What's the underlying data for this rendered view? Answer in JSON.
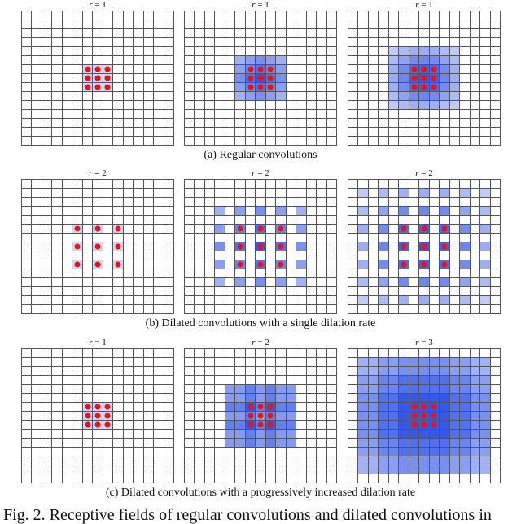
{
  "figure": {
    "caption": "Fig. 2.  Receptive fields of regular convolutions and dilated convolutions in",
    "grid_size": 15,
    "colors": {
      "grid_line": "#555555",
      "dot": "#f01010",
      "receptive_field_base": "#1e46e6"
    },
    "rows": [
      {
        "caption": "(a) Regular convolutions",
        "panels": [
          {
            "label": "r = 1",
            "kernel": 3,
            "dilations": [
              1
            ],
            "show_layers": 1
          },
          {
            "label": "r = 1",
            "kernel": 3,
            "dilations": [
              1,
              1
            ],
            "show_layers": 2
          },
          {
            "label": "r = 1",
            "kernel": 3,
            "dilations": [
              1,
              1,
              1
            ],
            "show_layers": 3
          }
        ]
      },
      {
        "caption": "(b) Dilated convolutions with a single dilation rate",
        "panels": [
          {
            "label": "r = 2",
            "kernel": 3,
            "dilations": [
              2
            ],
            "show_layers": 1
          },
          {
            "label": "r = 2",
            "kernel": 3,
            "dilations": [
              2,
              2
            ],
            "show_layers": 2
          },
          {
            "label": "r = 2",
            "kernel": 3,
            "dilations": [
              2,
              2,
              2
            ],
            "show_layers": 3
          }
        ]
      },
      {
        "caption": "(c) Dilated convolutions with a progressively increased dilation rate",
        "panels": [
          {
            "label": "r = 1",
            "kernel": 3,
            "dilations": [
              1
            ],
            "show_layers": 1
          },
          {
            "label": "r = 2",
            "kernel": 3,
            "dilations": [
              2,
              1
            ],
            "show_layers": 2
          },
          {
            "label": "r = 3",
            "kernel": 3,
            "dilations": [
              3,
              2,
              1
            ],
            "show_layers": 3
          }
        ]
      }
    ]
  }
}
